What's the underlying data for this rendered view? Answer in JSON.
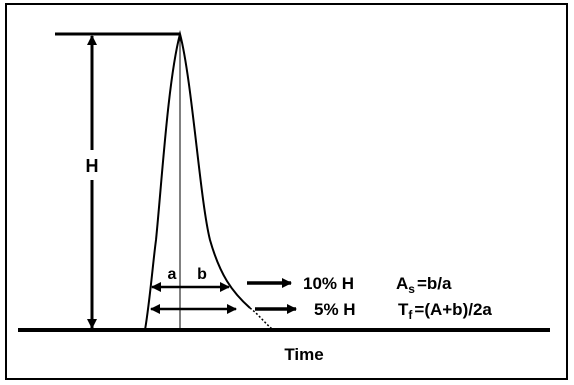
{
  "labels": {
    "height": "H",
    "a": "a",
    "b": "b",
    "ten_percent": "10% H",
    "five_percent": "5% H",
    "asymmetry_prefix": "A",
    "asymmetry_sub": "s",
    "asymmetry_formula": "=b/a",
    "tailing_prefix": "T",
    "tailing_sub": "f",
    "tailing_formula": "=(A+b)/2a",
    "time_axis": "Time"
  },
  "colors": {
    "line": "#000000",
    "background": "#ffffff"
  }
}
